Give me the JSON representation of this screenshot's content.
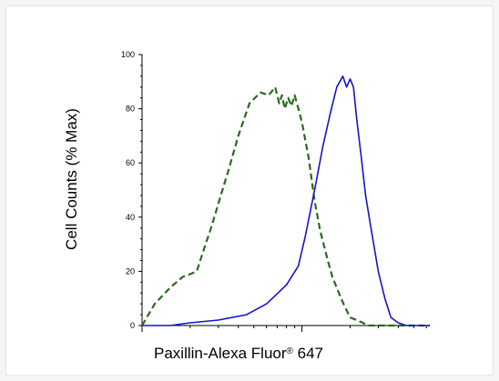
{
  "chart_data": {
    "type": "line",
    "title": "",
    "xlabel": "Paxillin-Alexa Fluor",
    "xlabel_mark": "®",
    "xlabel_suffix": " 647",
    "ylabel": "Cell Counts (% Max)",
    "xscale": "log",
    "xlim": [
      0.1,
      6.3
    ],
    "ylim": [
      0,
      100
    ],
    "y_ticks": [
      "0",
      "20",
      "40",
      "60",
      "80",
      "100"
    ],
    "y_tick_values": [
      0,
      20,
      40,
      60,
      80,
      100
    ],
    "grid": false,
    "legend": "none",
    "series": [
      {
        "style": "dashed",
        "color": "#2a6b1e",
        "x": [
          0.1,
          0.12,
          0.15,
          0.18,
          0.2,
          0.22,
          0.24,
          0.27,
          0.3,
          0.35,
          0.4,
          0.47,
          0.55,
          0.62,
          0.68,
          0.72,
          0.75,
          0.78,
          0.82,
          0.86,
          0.9,
          0.95,
          1.0,
          1.1,
          1.2,
          1.3,
          1.45,
          1.55,
          1.7,
          1.85,
          2.0,
          2.2,
          2.4,
          2.6,
          3.0,
          3.5,
          4.0,
          5.0,
          6.3
        ],
        "y": [
          0,
          8,
          14,
          18,
          19,
          20,
          27,
          36,
          45,
          58,
          70,
          82,
          86,
          85,
          88,
          82,
          85,
          80,
          84,
          81,
          85,
          80,
          75,
          62,
          46,
          35,
          24,
          18,
          12,
          7,
          3,
          2,
          1,
          0,
          0,
          0,
          0,
          0,
          0
        ]
      },
      {
        "style": "solid",
        "color": "#1414cc",
        "x": [
          0.1,
          0.15,
          0.2,
          0.3,
          0.45,
          0.6,
          0.8,
          0.95,
          1.05,
          1.2,
          1.35,
          1.5,
          1.65,
          1.8,
          1.9,
          2.0,
          2.1,
          2.2,
          2.35,
          2.5,
          2.7,
          3.0,
          3.3,
          3.6,
          4.0,
          4.5,
          5.0,
          6.3
        ],
        "y": [
          0,
          0,
          1,
          2,
          4,
          8,
          15,
          22,
          33,
          50,
          66,
          78,
          88,
          92,
          88,
          91,
          88,
          76,
          62,
          48,
          36,
          20,
          10,
          3,
          1,
          0,
          0,
          0
        ]
      }
    ]
  }
}
